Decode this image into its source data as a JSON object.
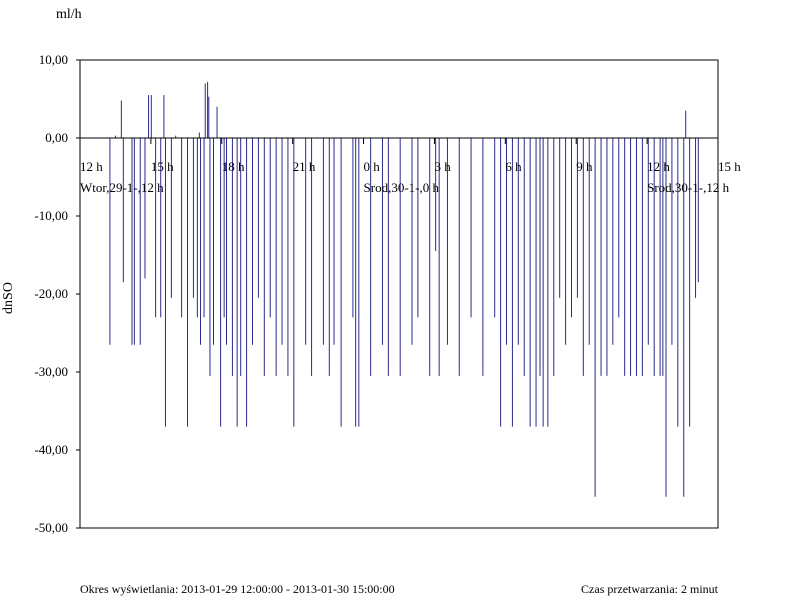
{
  "chart_data": {
    "type": "line",
    "unit_label": "ml/h",
    "ylabel": "dnSO",
    "ylim": [
      -50,
      10
    ],
    "y_ticks": [
      "10,00",
      "0,00",
      "-10,00",
      "-20,00",
      "-30,00",
      "-40,00",
      "-50,00"
    ],
    "x_range": [
      "2013-01-29 12:00",
      "2013-01-30 15:00"
    ],
    "x_ticks": [
      {
        "t": "2013-01-29 12:00",
        "label": "12 h",
        "date_label": "Wtor,29-1-,12 h"
      },
      {
        "t": "2013-01-29 15:00",
        "label": "15 h",
        "date_label": ""
      },
      {
        "t": "2013-01-29 18:00",
        "label": "18 h",
        "date_label": ""
      },
      {
        "t": "2013-01-29 21:00",
        "label": "21 h",
        "date_label": ""
      },
      {
        "t": "2013-01-30 00:00",
        "label": "0 h",
        "date_label": "Srod,30-1-,0 h"
      },
      {
        "t": "2013-01-30 03:00",
        "label": "3 h",
        "date_label": ""
      },
      {
        "t": "2013-01-30 06:00",
        "label": "6 h",
        "date_label": ""
      },
      {
        "t": "2013-01-30 09:00",
        "label": "9 h",
        "date_label": ""
      },
      {
        "t": "2013-01-30 12:00",
        "label": "12 h",
        "date_label": "Srod,30-1-,12 h"
      },
      {
        "t": "2013-01-30 15:00",
        "label": "15 h",
        "date_label": ""
      }
    ],
    "grid": false,
    "series_color": "#2b2b8c",
    "series": [
      {
        "name": "",
        "points": [
          [
            "2013-01-29 13:16",
            -26.5
          ],
          [
            "2013-01-29 13:30",
            0.3
          ],
          [
            "2013-01-29 13:45",
            4.8
          ],
          [
            "2013-01-29 13:50",
            -18.5
          ],
          [
            "2013-01-29 14:12",
            -26.5
          ],
          [
            "2013-01-29 14:18",
            -26.5
          ],
          [
            "2013-01-29 14:33",
            -26.5
          ],
          [
            "2013-01-29 14:45",
            -18
          ],
          [
            "2013-01-29 14:54",
            5.5
          ],
          [
            "2013-01-29 15:01",
            5.5
          ],
          [
            "2013-01-29 15:12",
            -23
          ],
          [
            "2013-01-29 15:25",
            -23
          ],
          [
            "2013-01-29 15:33",
            5.5
          ],
          [
            "2013-01-29 15:37",
            -37
          ],
          [
            "2013-01-29 15:52",
            -20.5
          ],
          [
            "2013-01-29 16:03",
            0.3
          ],
          [
            "2013-01-29 16:18",
            -23
          ],
          [
            "2013-01-29 16:33",
            -37
          ],
          [
            "2013-01-29 16:48",
            -20.5
          ],
          [
            "2013-01-29 16:58",
            -23
          ],
          [
            "2013-01-29 17:03",
            0.7
          ],
          [
            "2013-01-29 17:06",
            -26.5
          ],
          [
            "2013-01-29 17:15",
            -23
          ],
          [
            "2013-01-29 17:18",
            7
          ],
          [
            "2013-01-29 17:24",
            7.2
          ],
          [
            "2013-01-29 17:27",
            5.3
          ],
          [
            "2013-01-29 17:30",
            -30.5
          ],
          [
            "2013-01-29 17:39",
            -26.5
          ],
          [
            "2013-01-29 17:48",
            4
          ],
          [
            "2013-01-29 17:57",
            -37
          ],
          [
            "2013-01-29 18:06",
            -23
          ],
          [
            "2013-01-29 18:12",
            -26.5
          ],
          [
            "2013-01-29 18:27",
            -30.5
          ],
          [
            "2013-01-29 18:39",
            -37
          ],
          [
            "2013-01-29 18:48",
            -30.5
          ],
          [
            "2013-01-29 19:03",
            -37
          ],
          [
            "2013-01-29 19:18",
            -26.5
          ],
          [
            "2013-01-29 19:33",
            -20.5
          ],
          [
            "2013-01-29 19:48",
            -30.5
          ],
          [
            "2013-01-29 20:03",
            -23
          ],
          [
            "2013-01-29 20:18",
            -30.5
          ],
          [
            "2013-01-29 20:33",
            -26.5
          ],
          [
            "2013-01-29 20:48",
            -30.5
          ],
          [
            "2013-01-29 21:03",
            -37
          ],
          [
            "2013-01-29 21:33",
            -26.5
          ],
          [
            "2013-01-29 21:48",
            -30.5
          ],
          [
            "2013-01-29 22:18",
            -26.5
          ],
          [
            "2013-01-29 22:33",
            -30.5
          ],
          [
            "2013-01-29 22:45",
            -26.5
          ],
          [
            "2013-01-29 23:03",
            -37
          ],
          [
            "2013-01-29 23:33",
            -23
          ],
          [
            "2013-01-29 23:40",
            -37
          ],
          [
            "2013-01-29 23:48",
            -37
          ],
          [
            "2013-01-30 00:18",
            -30.5
          ],
          [
            "2013-01-30 00:48",
            -26.5
          ],
          [
            "2013-01-30 01:03",
            -30.5
          ],
          [
            "2013-01-30 01:33",
            -30.5
          ],
          [
            "2013-01-30 02:03",
            -26.5
          ],
          [
            "2013-01-30 02:18",
            -23
          ],
          [
            "2013-01-30 02:48",
            -30.5
          ],
          [
            "2013-01-30 03:03",
            -14.5
          ],
          [
            "2013-01-30 03:12",
            -30.5
          ],
          [
            "2013-01-30 03:33",
            -26.5
          ],
          [
            "2013-01-30 04:03",
            -30.5
          ],
          [
            "2013-01-30 04:33",
            -23
          ],
          [
            "2013-01-30 05:03",
            -30.5
          ],
          [
            "2013-01-30 05:33",
            -23
          ],
          [
            "2013-01-30 05:48",
            -37
          ],
          [
            "2013-01-30 06:03",
            -26.5
          ],
          [
            "2013-01-30 06:18",
            -37
          ],
          [
            "2013-01-30 06:33",
            -26.5
          ],
          [
            "2013-01-30 06:48",
            -30.5
          ],
          [
            "2013-01-30 07:03",
            -37
          ],
          [
            "2013-01-30 07:18",
            -37
          ],
          [
            "2013-01-30 07:28",
            -30.5
          ],
          [
            "2013-01-30 07:36",
            -37
          ],
          [
            "2013-01-30 07:48",
            -37
          ],
          [
            "2013-01-30 08:03",
            -30.5
          ],
          [
            "2013-01-30 08:18",
            -20.5
          ],
          [
            "2013-01-30 08:33",
            -26.5
          ],
          [
            "2013-01-30 08:48",
            -23
          ],
          [
            "2013-01-30 09:03",
            -20.5
          ],
          [
            "2013-01-30 09:18",
            -30.5
          ],
          [
            "2013-01-30 09:33",
            -26.5
          ],
          [
            "2013-01-30 09:48",
            -46
          ],
          [
            "2013-01-30 10:03",
            -30.5
          ],
          [
            "2013-01-30 10:18",
            -30.5
          ],
          [
            "2013-01-30 10:33",
            -26.5
          ],
          [
            "2013-01-30 10:48",
            -23
          ],
          [
            "2013-01-30 11:03",
            -30.5
          ],
          [
            "2013-01-30 11:18",
            -30.5
          ],
          [
            "2013-01-30 11:33",
            -30.5
          ],
          [
            "2013-01-30 11:48",
            -30.5
          ],
          [
            "2013-01-30 12:03",
            -26.5
          ],
          [
            "2013-01-30 12:18",
            -30.5
          ],
          [
            "2013-01-30 12:33",
            -30.5
          ],
          [
            "2013-01-30 12:40",
            -30.5
          ],
          [
            "2013-01-30 12:48",
            -46
          ],
          [
            "2013-01-30 13:03",
            -26.5
          ],
          [
            "2013-01-30 13:18",
            -37
          ],
          [
            "2013-01-30 13:33",
            -46
          ],
          [
            "2013-01-30 13:38",
            3.5
          ],
          [
            "2013-01-30 13:48",
            -37
          ],
          [
            "2013-01-30 14:03",
            -20.5
          ],
          [
            "2013-01-30 14:10",
            -18.5
          ]
        ]
      }
    ]
  },
  "footer": {
    "range_label": "Okres wyświetlania: 2013-01-29 12:00:00 - 2013-01-30 15:00:00",
    "processing_label": "Czas przetwarzania: 2 minut"
  }
}
